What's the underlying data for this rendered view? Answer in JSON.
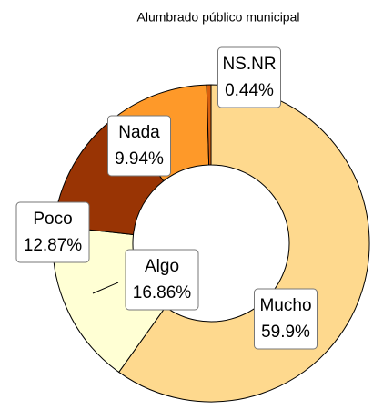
{
  "chart_data": {
    "type": "donut",
    "title": "Alumbrado público municipal",
    "categories": [
      "Mucho",
      "Algo",
      "Poco",
      "Nada",
      "NS.NR"
    ],
    "values": [
      59.9,
      16.86,
      12.87,
      9.94,
      0.44
    ],
    "value_labels": [
      "59.9%",
      "16.86%",
      "12.87%",
      "9.94%",
      "0.44%"
    ],
    "colors": [
      "#fed98e",
      "#ffffd4",
      "#993404",
      "#fe9929",
      "#d95f0e"
    ]
  }
}
